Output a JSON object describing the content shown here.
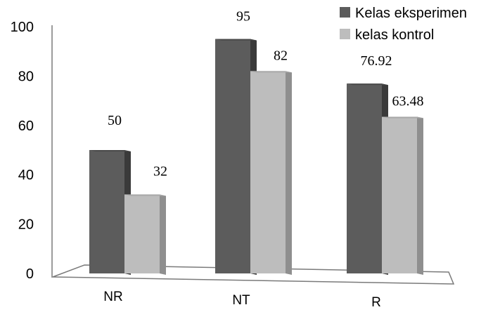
{
  "chart_data": {
    "type": "bar",
    "categories": [
      "NR",
      "NT",
      "R"
    ],
    "series": [
      {
        "name": "Kelas eksperimen",
        "values": [
          50,
          95,
          76.92
        ],
        "labels": [
          "50",
          "95",
          "76.92"
        ]
      },
      {
        "name": "kelas kontrol",
        "values": [
          32,
          82,
          63.48
        ],
        "labels": [
          "32",
          "82",
          "63.48"
        ]
      }
    ],
    "yticks": [
      "0",
      "20",
      "40",
      "60",
      "80",
      "100"
    ],
    "ylim": [
      0,
      100
    ],
    "grid": false,
    "legend": "top-right",
    "three_d": true
  },
  "colors": {
    "series_front": [
      "#5c5c5c",
      "#bdbdbd"
    ],
    "series_side": [
      "#3a3a3a",
      "#8f8f8f"
    ],
    "series_top": [
      "#4a4a4a",
      "#a8a8a8"
    ],
    "axis": "#7a7a7a"
  }
}
